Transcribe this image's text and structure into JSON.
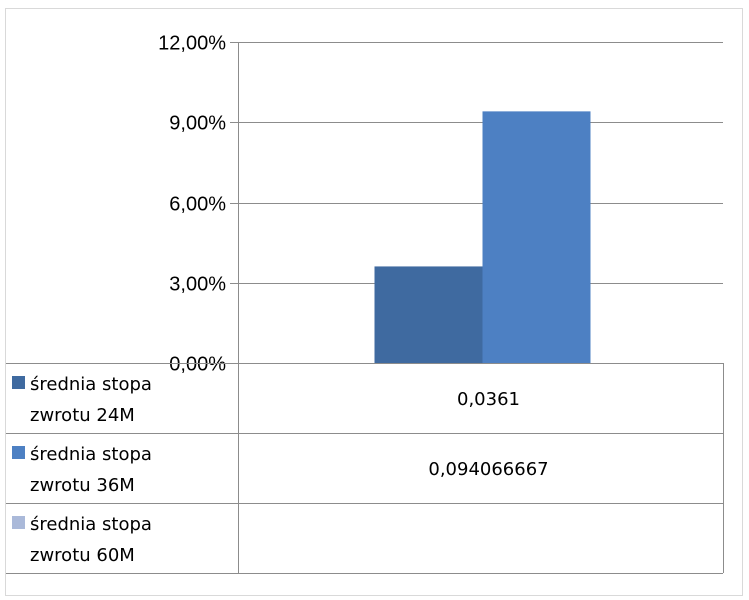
{
  "chart_data": {
    "type": "bar",
    "categories": [
      ""
    ],
    "series": [
      {
        "name": "średnia stopa zwrotu 24M",
        "name_lines": [
          "średnia stopa",
          "zwrotu 24M"
        ],
        "values": [
          0.0361
        ],
        "value_label": "0,0361",
        "color": "#3f6aa0"
      },
      {
        "name": "średnia stopa zwrotu 36M",
        "name_lines": [
          "średnia stopa",
          "zwrotu 36M"
        ],
        "values": [
          0.094066667
        ],
        "value_label": "0,094066667",
        "color": "#4d80c3"
      },
      {
        "name": "średnia stopa zwrotu 60M",
        "name_lines": [
          "średnia stopa",
          "zwrotu 60M"
        ],
        "values": [
          null
        ],
        "value_label": "",
        "color": "#aab9d9"
      }
    ],
    "y_ticks": [
      0,
      0.03,
      0.06,
      0.09,
      0.12
    ],
    "y_tick_labels": [
      "0,00%",
      "3,00%",
      "6,00%",
      "9,00%",
      "12,00%"
    ],
    "ylim": [
      0,
      0.12
    ],
    "grid": true,
    "legend": "data-table"
  }
}
